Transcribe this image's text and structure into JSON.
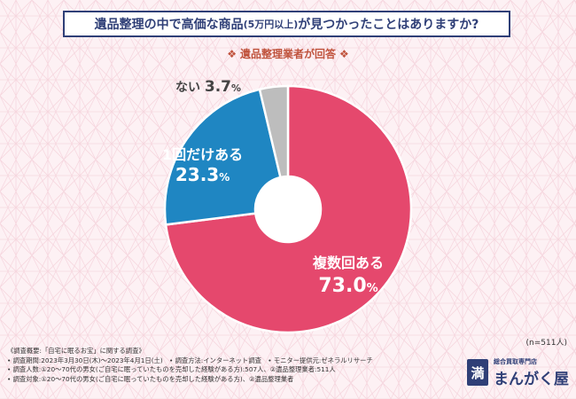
{
  "header": {
    "title_before": "遺品整理の中で高価な商品",
    "title_paren": "(5万円以上)",
    "title_after": "が見つかったことはありますか?",
    "subtitle": "遺品整理業者が回答",
    "subtitle_mark": "❖"
  },
  "chart_data": {
    "type": "pie",
    "labels": [
      "複数回ある",
      "1回だけある",
      "ない"
    ],
    "values": [
      73.0,
      23.3,
      3.7
    ],
    "value_labels": [
      "73.0",
      "23.3",
      "3.7"
    ],
    "unit": "%",
    "colors": [
      "#e5486d",
      "#1f86c2",
      "#bdbdbd"
    ]
  },
  "sample_size": "(n=511人)",
  "notes": [
    "《調査概要:「自宅に眠るお宝」に関する調査》",
    "• 調査期間:2023年3月30日(木)〜2023年4月1日(土)　• 調査方法:インターネット調査　• モニター提供元:ゼネラルリサーチ",
    "• 調査人数:①20〜70代の男女(ご自宅に眠っていたものを売却した経験がある方):507人、②遺品整理業者:511人",
    "• 調査対象:①20〜70代の男女(ご自宅に眠っていたものを売却した経験がある方)、②遺品整理業者"
  ],
  "logo": {
    "badge": "満",
    "small": "総合買取専門店",
    "main": "まんがく屋"
  }
}
